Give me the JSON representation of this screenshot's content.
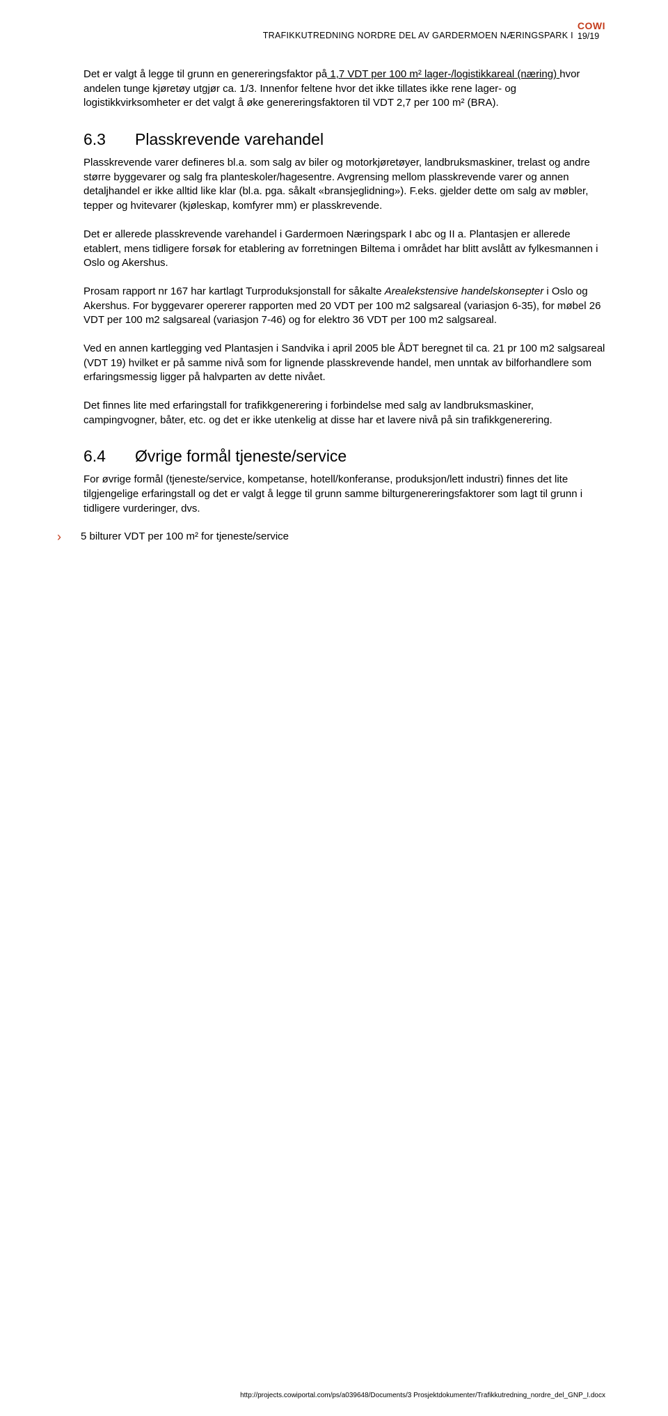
{
  "header": {
    "running_title": "TRAFIKKUTREDNING NORDRE DEL AV GARDERMOEN NÆRINGSPARK I",
    "logo": "COWI",
    "page_num": "19/19"
  },
  "para1_pre": "Det er valgt å legge til grunn en genereringsfaktor på",
  "para1_u": " 1,7 VDT per 100 m² lager-/logistikkareal (næring) ",
  "para1_post": "hvor andelen tunge kjøretøy utgjør ca. 1/3. Innenfor feltene hvor det ikke tillates ikke rene lager- og logistikkvirksomheter er det valgt å øke genereringsfaktoren til VDT 2,7 per 100 m² (BRA).",
  "s63": {
    "num": "6.3",
    "title": "Plasskrevende varehandel",
    "p1": "Plasskrevende varer defineres bl.a. som salg av biler og motorkjøretøyer, landbruksmaskiner, trelast og andre større byggevarer og salg fra planteskoler/hagesentre. Avgrensing mellom plasskrevende varer og annen detaljhandel er ikke alltid like klar (bl.a. pga. såkalt «bransjeglidning»). F.eks. gjelder dette om salg av møbler, tepper og hvitevarer (kjøleskap, komfyrer mm) er plasskrevende.",
    "p2": "Det er allerede plasskrevende varehandel i Gardermoen Næringspark I abc og II a. Plantasjen er allerede etablert, mens tidligere forsøk for etablering av forretningen Biltema i området har blitt avslått av fylkesmannen i Oslo og Akershus.",
    "p3_pre": "Prosam rapport nr 167 har kartlagt Turproduksjonstall for såkalte ",
    "p3_italic": "Arealekstensive handelskonsepter",
    "p3_post": " i Oslo og Akershus. For byggevarer opererer rapporten med 20 VDT per 100 m2 salgsareal (variasjon 6-35), for møbel 26 VDT per 100 m2 salgsareal (variasjon 7-46) og for elektro 36 VDT per 100 m2 salgsareal.",
    "p4": "Ved en annen kartlegging ved Plantasjen i Sandvika i april 2005 ble ÅDT beregnet til ca. 21 pr 100 m2 salgsareal (VDT 19) hvilket er på samme nivå som for lignende plasskrevende handel, men unntak av bilforhandlere som erfaringsmessig ligger på halvparten av dette nivået.",
    "p5": "Det finnes lite med erfaringstall for trafikkgenerering i forbindelse med salg av landbruksmaskiner, campingvogner, båter, etc. og det er ikke utenkelig at disse har et lavere nivå på sin trafikkgenerering."
  },
  "s64": {
    "num": "6.4",
    "title": "Øvrige formål tjeneste/service",
    "p1": "For øvrige formål (tjeneste/service, kompetanse, hotell/konferanse, produksjon/lett industri) finnes det lite tilgjengelige erfaringstall og det er valgt å legge til grunn samme bilturgenereringsfaktorer som lagt til grunn i tidligere vurderinger, dvs.",
    "bullet1": "5 bilturer VDT per 100 m² for tjeneste/service"
  },
  "footer": "http://projects.cowiportal.com/ps/a039648/Documents/3 Prosjektdokumenter/Trafikkutredning_nordre_del_GNP_I.docx",
  "colors": {
    "accent": "#c43c1c",
    "text": "#000000",
    "bg": "#ffffff"
  }
}
